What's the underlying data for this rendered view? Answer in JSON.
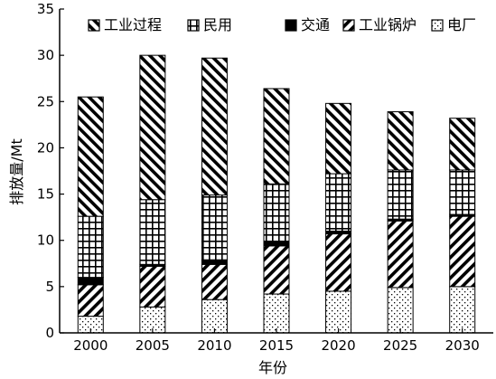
{
  "chart_data": {
    "type": "bar",
    "stacked": true,
    "xlabel": "年份",
    "ylabel": "排放量/Mt",
    "ylim": [
      0,
      35
    ],
    "yticks": [
      0,
      5,
      10,
      15,
      20,
      25,
      30,
      35
    ],
    "categories": [
      "2000",
      "2005",
      "2010",
      "2015",
      "2020",
      "2025",
      "2030"
    ],
    "legend_position": "top",
    "grid": false,
    "series": [
      {
        "name": "电厂",
        "pattern": "dots",
        "values": [
          1.8,
          2.8,
          3.6,
          4.2,
          4.5,
          4.9,
          5.0
        ]
      },
      {
        "name": "工业锅炉",
        "pattern": "diagonal-right",
        "values": [
          3.4,
          4.4,
          3.8,
          5.2,
          6.2,
          7.2,
          7.6
        ]
      },
      {
        "name": "交通",
        "pattern": "solid",
        "values": [
          0.8,
          0.2,
          0.5,
          0.4,
          0.3,
          0.2,
          0.2
        ]
      },
      {
        "name": "民用",
        "pattern": "grid",
        "values": [
          6.6,
          7.0,
          7.0,
          6.3,
          6.2,
          5.3,
          4.8
        ]
      },
      {
        "name": "工业过程",
        "pattern": "diagonal-left",
        "values": [
          12.9,
          15.6,
          14.8,
          10.3,
          7.6,
          6.3,
          5.6
        ]
      }
    ],
    "legend_order": [
      "工业过程",
      "民用",
      "交通",
      "工业锅炉",
      "电厂"
    ]
  }
}
